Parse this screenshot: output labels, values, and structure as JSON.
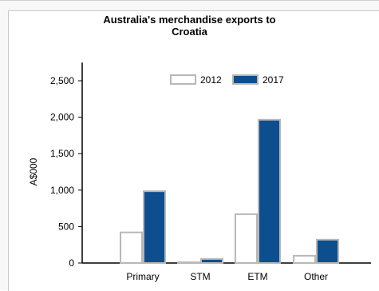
{
  "chart_data": {
    "type": "bar",
    "title_lines": [
      "Australia's merchandise exports to",
      "Croatia"
    ],
    "ylabel": "A$000",
    "xlabel": "",
    "categories": [
      "Primary",
      "STM",
      "ETM",
      "Other"
    ],
    "series": [
      {
        "name": "2012",
        "values": [
          420,
          10,
          670,
          100
        ],
        "fill": "#ffffff",
        "stroke": "#b8b8b8"
      },
      {
        "name": "2017",
        "values": [
          985,
          55,
          1965,
          320
        ],
        "fill": "#0d4e8e",
        "stroke": "#b8b8b8"
      }
    ],
    "ylim": [
      0,
      2750
    ],
    "yticks": [
      0,
      500,
      1000,
      1500,
      2000,
      2500
    ],
    "ytick_labels": [
      "0",
      "500",
      "1,000",
      "1,500",
      "2,000",
      "2,500"
    ],
    "legend_position": "top"
  }
}
